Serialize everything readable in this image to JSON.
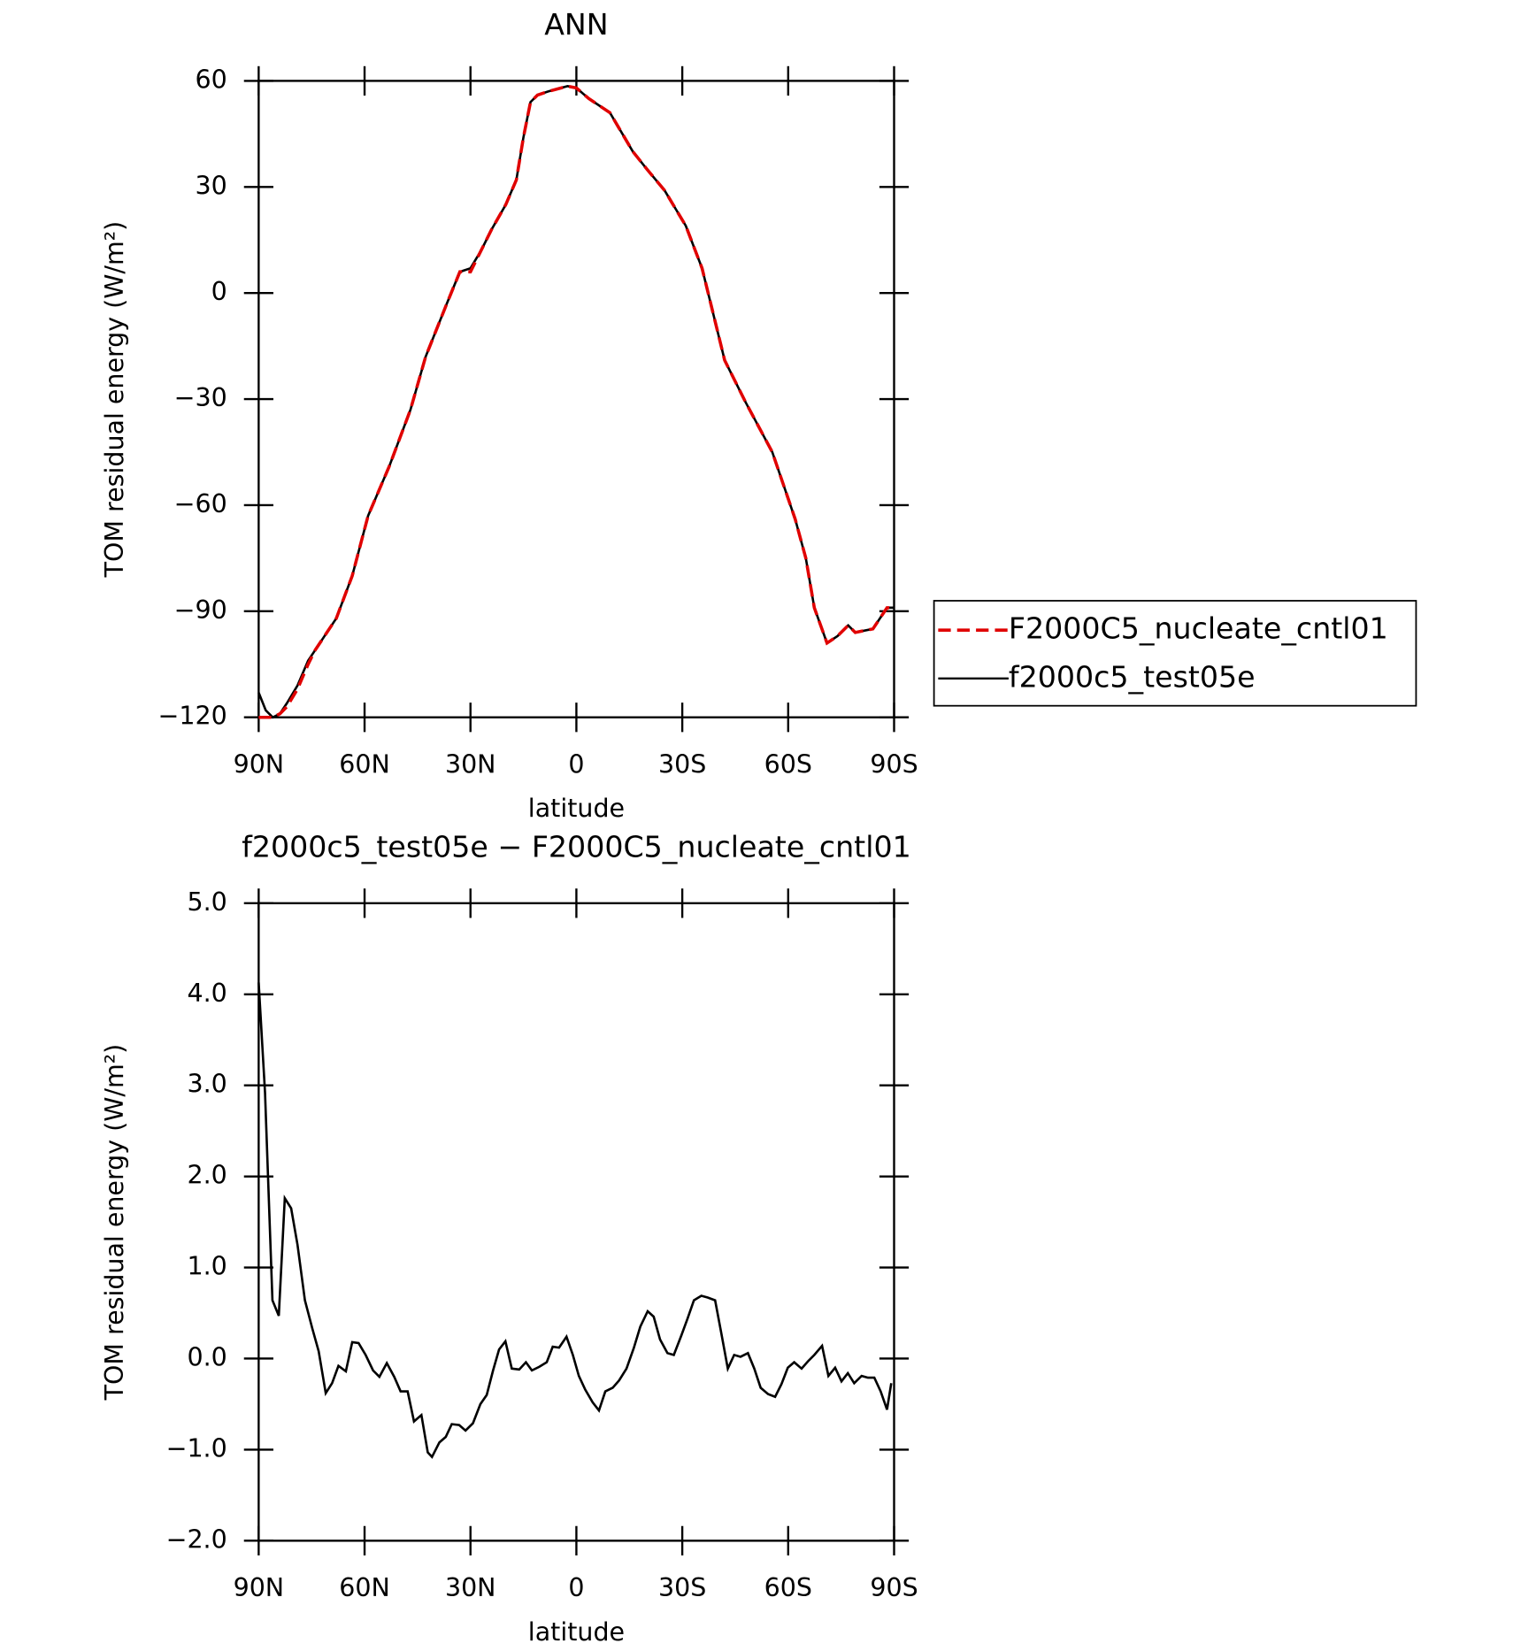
{
  "chart_data": [
    {
      "type": "line",
      "title": "ANN",
      "xlabel": "latitude",
      "ylabel": "TOM residual energy (W/m²)",
      "x": [
        90,
        88,
        86,
        84,
        82,
        79,
        76,
        74,
        68,
        63.5,
        59,
        53,
        47,
        42.7,
        36.7,
        33,
        30,
        27,
        24,
        20,
        17,
        15,
        13,
        11,
        8,
        2.5,
        0,
        -3.5,
        -6.5,
        -9.5,
        -16,
        -20,
        -25,
        -31,
        -35.6,
        -42,
        -48,
        -55.5,
        -62,
        -65,
        -67.4,
        -71,
        -74,
        -77,
        -79,
        -84,
        -88,
        -90
      ],
      "series": [
        {
          "name": "F2000C5_nucleate_cntl01",
          "color": "#e00000",
          "dash": true,
          "values": [
            -120,
            -120,
            -120,
            -119,
            -117,
            -112,
            -105,
            -101,
            -92,
            -80,
            -63,
            -49,
            -33,
            -18,
            -3,
            6,
            6,
            12,
            18,
            25,
            32,
            44,
            54,
            56,
            57,
            58.5,
            58,
            55,
            53,
            51,
            40,
            35,
            29,
            19,
            7,
            -19,
            -31,
            -45,
            -64,
            -75,
            -89,
            -99,
            -97,
            -94,
            -96,
            -95,
            -89,
            -89
          ]
        },
        {
          "name": "f2000c5_test05e",
          "color": "#000000",
          "dash": false,
          "values": [
            -113,
            -118,
            -120,
            -119,
            -116,
            -111,
            -104,
            -101,
            -92,
            -80,
            -63,
            -49,
            -33,
            -18,
            -3,
            6,
            7,
            12,
            18,
            25,
            32,
            44,
            54,
            56,
            57,
            58.5,
            58,
            55,
            53,
            51,
            40,
            35,
            29,
            19,
            7,
            -19,
            -31,
            -45,
            -64,
            -75,
            -89,
            -99,
            -97,
            -94,
            -96,
            -95,
            -89,
            -89
          ]
        }
      ],
      "xlim": [
        90,
        -90
      ],
      "xticks": [
        {
          "value": 90,
          "label": "90N"
        },
        {
          "value": 60,
          "label": "60N"
        },
        {
          "value": 30,
          "label": "30N"
        },
        0,
        {
          "value": -30,
          "label": "30S"
        },
        {
          "value": -60,
          "label": "60S"
        },
        {
          "value": -90,
          "label": "90S"
        }
      ],
      "ylim": [
        -120,
        60
      ],
      "yticks": [
        {
          "value": -120,
          "label": "−120"
        },
        {
          "value": -90,
          "label": "−90"
        },
        {
          "value": -60,
          "label": "−60"
        },
        {
          "value": -30,
          "label": "−30"
        },
        0,
        30,
        60
      ],
      "legend": "outside-right"
    },
    {
      "type": "line",
      "title": "f2000c5_test05e − F2000C5_nucleate_cntl01",
      "xlabel": "latitude",
      "ylabel": "TOM residual energy (W/m²)",
      "x": [
        90,
        88.2,
        86.1,
        84.3,
        82.6,
        80.8,
        79,
        76.9,
        74.8,
        73,
        71,
        69.2,
        67.4,
        65.3,
        63.5,
        61.7,
        59.7,
        57.6,
        55.8,
        53.7,
        51.6,
        49.8,
        47.8,
        46,
        43.9,
        42.1,
        40.9,
        38.8,
        37,
        35.3,
        33.2,
        31.4,
        29.3,
        27.2,
        25.4,
        23.6,
        21.9,
        20.1,
        18.3,
        16.2,
        14.3,
        12.6,
        10.5,
        8.4,
        6.7,
        4.9,
        2.8,
        1,
        -0.7,
        -2.5,
        -4.6,
        -6.4,
        -8.2,
        -10.3,
        -12.1,
        -14.2,
        -16.3,
        -18.1,
        -20.2,
        -21.9,
        -23.7,
        -25.8,
        -27.6,
        -29.7,
        -31.5,
        -33.3,
        -35.4,
        -37.2,
        -39.3,
        -41.1,
        -42.9,
        -44.7,
        -46.5,
        -48.6,
        -50.4,
        -52.2,
        -54.3,
        -56.3,
        -58.1,
        -59.9,
        -61.7,
        -63.8,
        -65.6,
        -67.4,
        -69.6,
        -71.4,
        -73.3,
        -75.1,
        -76.9,
        -78.7,
        -80.8,
        -82.6,
        -84.4,
        -86.2,
        -88,
        -89.2
      ],
      "series": [
        {
          "color": "#000000",
          "dash": false,
          "values": [
            4.13,
            2.92,
            0.64,
            0.47,
            1.76,
            1.65,
            1.25,
            0.64,
            0.33,
            0.08,
            -0.38,
            -0.27,
            -0.08,
            -0.14,
            0.18,
            0.17,
            0.04,
            -0.13,
            -0.2,
            -0.05,
            -0.2,
            -0.36,
            -0.36,
            -0.69,
            -0.62,
            -1.03,
            -1.08,
            -0.92,
            -0.86,
            -0.72,
            -0.73,
            -0.79,
            -0.71,
            -0.5,
            -0.4,
            -0.13,
            0.1,
            0.19,
            -0.11,
            -0.12,
            -0.04,
            -0.13,
            -0.09,
            -0.04,
            0.13,
            0.12,
            0.24,
            0.04,
            -0.19,
            -0.34,
            -0.48,
            -0.57,
            -0.36,
            -0.32,
            -0.24,
            -0.11,
            0.12,
            0.35,
            0.52,
            0.46,
            0.21,
            0.06,
            0.04,
            0.25,
            0.44,
            0.64,
            0.69,
            0.67,
            0.64,
            0.27,
            -0.11,
            0.04,
            0.02,
            0.06,
            -0.11,
            -0.32,
            -0.39,
            -0.42,
            -0.28,
            -0.1,
            -0.04,
            -0.11,
            -0.03,
            0.04,
            0.14,
            -0.19,
            -0.1,
            -0.25,
            -0.16,
            -0.27,
            -0.19,
            -0.21,
            -0.21,
            -0.36,
            -0.56,
            -0.27
          ]
        }
      ],
      "xlim": [
        90,
        -90
      ],
      "xticks": [
        {
          "value": 90,
          "label": "90N"
        },
        {
          "value": 60,
          "label": "60N"
        },
        {
          "value": 30,
          "label": "30N"
        },
        0,
        {
          "value": -30,
          "label": "30S"
        },
        {
          "value": -60,
          "label": "60S"
        },
        {
          "value": -90,
          "label": "90S"
        }
      ],
      "ylim": [
        -2,
        5
      ],
      "yticks": [
        {
          "value": -2,
          "label": "−2.0"
        },
        {
          "value": -1,
          "label": "−1.0"
        },
        {
          "value": 0,
          "label": "0.0"
        },
        {
          "value": 1,
          "label": "1.0"
        },
        {
          "value": 2,
          "label": "2.0"
        },
        {
          "value": 3,
          "label": "3.0"
        },
        {
          "value": 4,
          "label": "4.0"
        },
        {
          "value": 5,
          "label": "5.0"
        }
      ]
    }
  ]
}
